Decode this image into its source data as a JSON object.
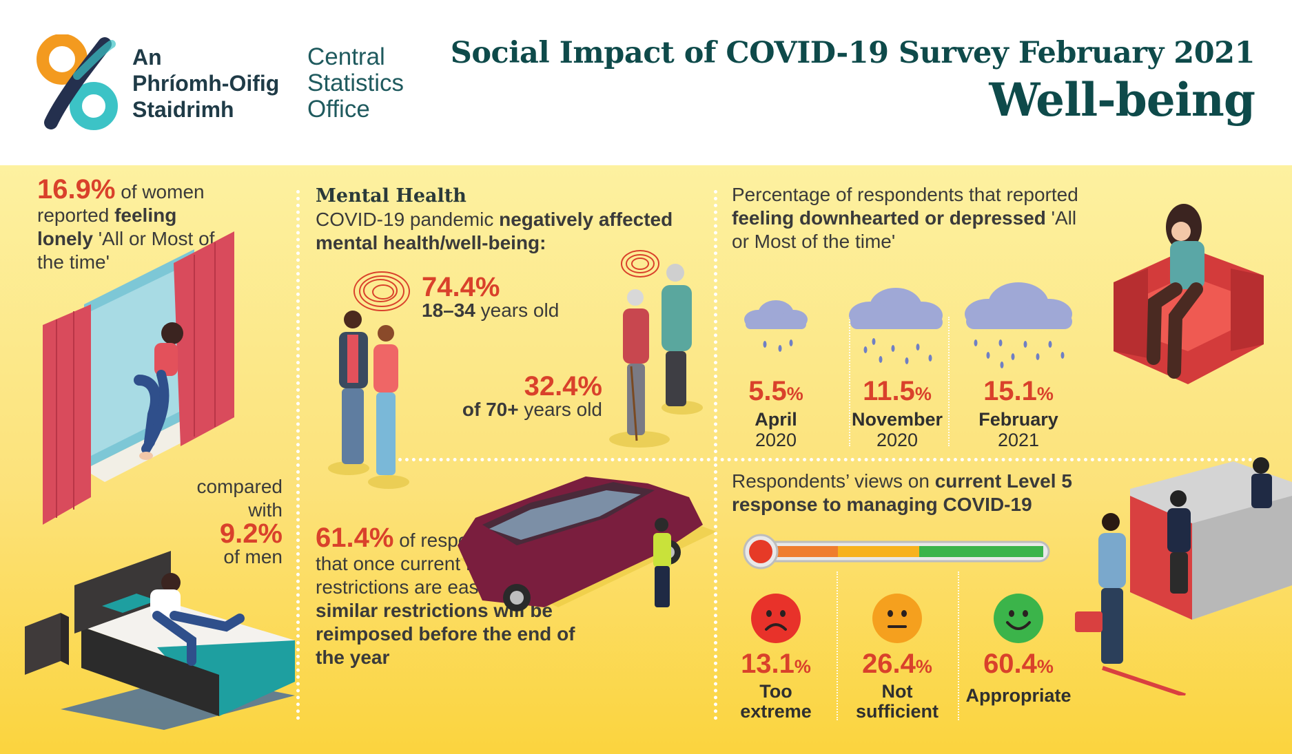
{
  "header": {
    "logo_irish": [
      "An",
      "Phríomh-Oifig",
      "Staidrimh"
    ],
    "logo_english": [
      "Central",
      "Statistics",
      "Office"
    ],
    "title": "Social Impact of COVID-19 Survey February 2021",
    "subtitle": "Well-being"
  },
  "loneliness": {
    "women_pct": "16.9%",
    "women_text_a": "of women reported",
    "women_text_b": "feeling lonely",
    "women_text_c": "'All or Most of the time'",
    "compared": "compared with",
    "men_pct": "9.2%",
    "men_text": "of men"
  },
  "mental_health": {
    "title": "Mental Health",
    "line_a": "COVID-19 pandemic",
    "line_b": "negatively affected mental health/well-being:",
    "young_pct": "74.4%",
    "young_age": "18–34",
    "young_label": "years old",
    "old_pct": "32.4%",
    "old_prefix": "of 70+",
    "old_label": "years old"
  },
  "restrictions": {
    "pct": "61.4%",
    "text_a": "of respondents believe that once current Level 5 restrictions are eased that",
    "text_b": "similar restrictions will be reimposed before the end of the year"
  },
  "downhearted": {
    "head_a": "Percentage of respondents that reported",
    "head_b": "feeling downhearted or depressed",
    "head_c": "'All or Most of the time'",
    "items": [
      {
        "pct": "5.5",
        "unit": "%",
        "month": "April",
        "year": "2020"
      },
      {
        "pct": "11.5",
        "unit": "%",
        "month": "November",
        "year": "2020"
      },
      {
        "pct": "15.1",
        "unit": "%",
        "month": "February",
        "year": "2021"
      }
    ]
  },
  "level5": {
    "head_a": "Respondents’ views on",
    "head_b": "current Level 5 response to managing COVID-19",
    "items": [
      {
        "pct": "13.1",
        "unit": "%",
        "label_a": "Too",
        "label_b": "extreme",
        "color": "#e8322a"
      },
      {
        "pct": "26.4",
        "unit": "%",
        "label_a": "Not",
        "label_b": "sufficient",
        "color": "#f5a01e"
      },
      {
        "pct": "60.4",
        "unit": "%",
        "label_a": "Appropriate",
        "label_b": "",
        "color": "#3bb44a"
      }
    ]
  },
  "colors": {
    "accent_red": "#d9412b",
    "title_teal": "#0e4a4a",
    "panel_yellow": "#fce27a"
  }
}
